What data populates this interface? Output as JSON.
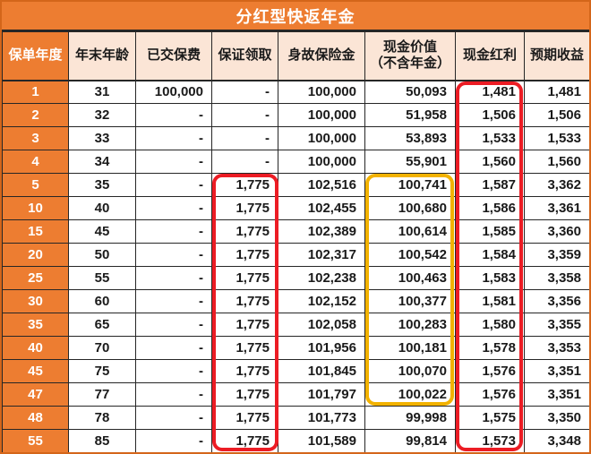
{
  "title": "分红型快返年金",
  "colors": {
    "orange": "#ED7D31",
    "peach": "#FBE5D6",
    "red": "#EC1C24",
    "gold": "#F2B200",
    "border": "#262626",
    "frame": "#D4661A",
    "text": "#1A1A1A"
  },
  "table": {
    "headers": [
      "保单年度",
      "年末年龄",
      "已交保费",
      "保证领取",
      "身故保险金",
      "现金价值\n（不含年金）",
      "现金红利",
      "预期收益"
    ],
    "column_align": [
      "center",
      "center",
      "right",
      "right",
      "right",
      "right",
      "right",
      "right"
    ]
  },
  "chart_data": {
    "type": "table",
    "title": "分红型快返年金",
    "columns": [
      "保单年度",
      "年末年龄",
      "已交保费",
      "保证领取",
      "身故保险金",
      "现金价值（不含年金）",
      "现金红利",
      "预期收益"
    ],
    "rows": [
      [
        "1",
        "31",
        "100,000",
        "-",
        "100,000",
        "50,093",
        "1,481",
        "1,481"
      ],
      [
        "2",
        "32",
        "-",
        "-",
        "100,000",
        "51,958",
        "1,506",
        "1,506"
      ],
      [
        "3",
        "33",
        "-",
        "-",
        "100,000",
        "53,893",
        "1,533",
        "1,533"
      ],
      [
        "4",
        "34",
        "-",
        "-",
        "100,000",
        "55,901",
        "1,560",
        "1,560"
      ],
      [
        "5",
        "35",
        "-",
        "1,775",
        "102,516",
        "100,741",
        "1,587",
        "3,362"
      ],
      [
        "10",
        "40",
        "-",
        "1,775",
        "102,455",
        "100,680",
        "1,586",
        "3,361"
      ],
      [
        "15",
        "45",
        "-",
        "1,775",
        "102,389",
        "100,614",
        "1,585",
        "3,360"
      ],
      [
        "20",
        "50",
        "-",
        "1,775",
        "102,317",
        "100,542",
        "1,584",
        "3,359"
      ],
      [
        "25",
        "55",
        "-",
        "1,775",
        "102,238",
        "100,463",
        "1,583",
        "3,358"
      ],
      [
        "30",
        "60",
        "-",
        "1,775",
        "102,152",
        "100,377",
        "1,581",
        "3,356"
      ],
      [
        "35",
        "65",
        "-",
        "1,775",
        "102,058",
        "100,283",
        "1,580",
        "3,355"
      ],
      [
        "40",
        "70",
        "-",
        "1,775",
        "101,956",
        "100,181",
        "1,578",
        "3,353"
      ],
      [
        "45",
        "75",
        "-",
        "1,775",
        "101,845",
        "100,070",
        "1,576",
        "3,351"
      ],
      [
        "47",
        "77",
        "-",
        "1,775",
        "101,797",
        "100,022",
        "1,576",
        "3,351"
      ],
      [
        "48",
        "78",
        "-",
        "1,775",
        "101,773",
        "99,998",
        "1,575",
        "3,350"
      ],
      [
        "55",
        "85",
        "-",
        "1,775",
        "101,589",
        "99,814",
        "1,573",
        "3,348"
      ]
    ]
  },
  "annotations": [
    {
      "name": "guaranteed-payout-highlight",
      "shape": "rounded-rect",
      "color": "#EC1C24",
      "covers": "保证领取 1,775（第5至55保单年度）"
    },
    {
      "name": "cash-value-highlight",
      "shape": "rounded-rect",
      "color": "#F2B200",
      "covers": "现金价值 100,741–100,022（第5至47保单年度）"
    },
    {
      "name": "cash-dividend-highlight",
      "shape": "rounded-rect",
      "color": "#EC1C24",
      "covers": "现金红利 1,481–1,573（全部保单年度）"
    }
  ]
}
